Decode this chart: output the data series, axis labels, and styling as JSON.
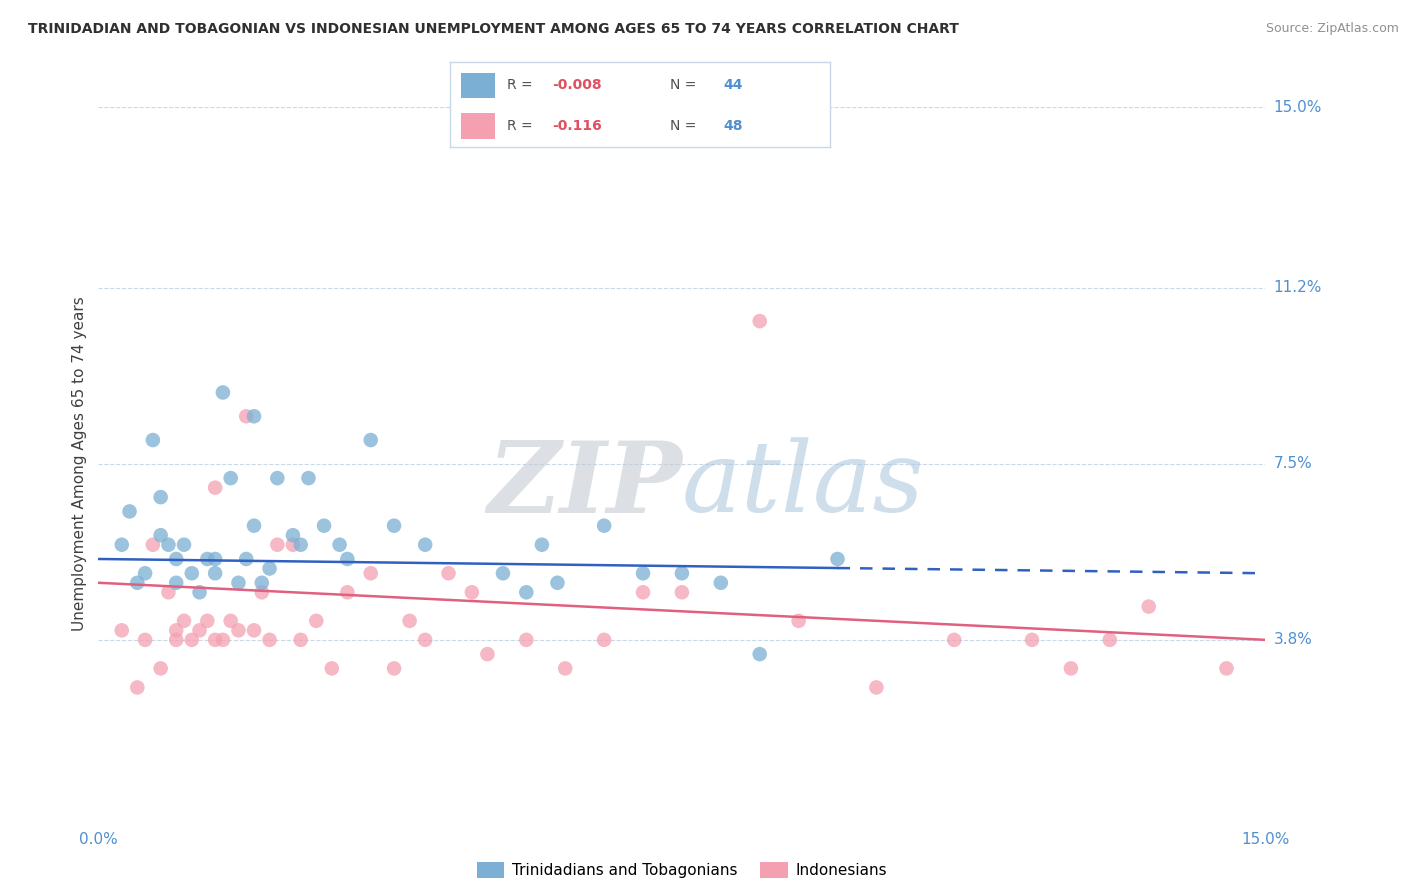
{
  "title": "TRINIDADIAN AND TOBAGONIAN VS INDONESIAN UNEMPLOYMENT AMONG AGES 65 TO 74 YEARS CORRELATION CHART",
  "source": "Source: ZipAtlas.com",
  "ylabel": "Unemployment Among Ages 65 to 74 years",
  "ylabel_ticks_values": [
    0.0,
    3.8,
    7.5,
    11.2,
    15.0
  ],
  "ylabel_ticks_labels": [
    "",
    "3.8%",
    "7.5%",
    "11.2%",
    "15.0%"
  ],
  "xmin": 0.0,
  "xmax": 15.0,
  "ymin": 0.0,
  "ymax": 15.0,
  "grid_color": "#c8d8e8",
  "bg_color": "#ffffff",
  "blue_color": "#7bafd4",
  "pink_color": "#f4a0b0",
  "blue_line_color": "#3060c0",
  "pink_line_color": "#e06080",
  "title_color": "#303030",
  "source_color": "#909090",
  "tick_label_color": "#5090d0",
  "legend_R_color": "#e05060",
  "legend_N_color": "#5090d0",
  "R_blue": -0.008,
  "N_blue": 44,
  "R_pink": -0.116,
  "N_pink": 48,
  "legend_label_blue": "Trinidadians and Tobagonians",
  "legend_label_pink": "Indonesians",
  "watermark_zip": "ZIP",
  "watermark_atlas": "atlas",
  "blue_scatter_x": [
    0.3,
    0.4,
    0.5,
    0.6,
    0.7,
    0.8,
    0.8,
    0.9,
    1.0,
    1.0,
    1.1,
    1.2,
    1.3,
    1.4,
    1.5,
    1.5,
    1.6,
    1.7,
    1.8,
    1.9,
    2.0,
    2.0,
    2.1,
    2.2,
    2.3,
    2.5,
    2.6,
    2.7,
    2.9,
    3.1,
    3.2,
    3.5,
    3.8,
    4.2,
    5.2,
    5.5,
    5.7,
    5.9,
    6.5,
    7.0,
    7.5,
    8.0,
    8.5,
    9.5
  ],
  "blue_scatter_y": [
    5.8,
    6.5,
    5.0,
    5.2,
    8.0,
    6.8,
    6.0,
    5.8,
    5.5,
    5.0,
    5.8,
    5.2,
    4.8,
    5.5,
    5.2,
    5.5,
    9.0,
    7.2,
    5.0,
    5.5,
    8.5,
    6.2,
    5.0,
    5.3,
    7.2,
    6.0,
    5.8,
    7.2,
    6.2,
    5.8,
    5.5,
    8.0,
    6.2,
    5.8,
    5.2,
    4.8,
    5.8,
    5.0,
    6.2,
    5.2,
    5.2,
    5.0,
    3.5,
    5.5
  ],
  "pink_scatter_x": [
    0.3,
    0.5,
    0.6,
    0.7,
    0.8,
    0.9,
    1.0,
    1.0,
    1.1,
    1.2,
    1.3,
    1.4,
    1.5,
    1.5,
    1.6,
    1.7,
    1.8,
    1.9,
    2.0,
    2.1,
    2.2,
    2.3,
    2.5,
    2.6,
    2.8,
    3.0,
    3.2,
    3.5,
    3.8,
    4.0,
    4.2,
    4.5,
    4.8,
    5.0,
    5.5,
    6.0,
    6.5,
    7.0,
    7.5,
    8.5,
    9.0,
    10.0,
    11.0,
    12.0,
    12.5,
    13.0,
    13.5,
    14.5
  ],
  "pink_scatter_y": [
    4.0,
    2.8,
    3.8,
    5.8,
    3.2,
    4.8,
    3.8,
    4.0,
    4.2,
    3.8,
    4.0,
    4.2,
    3.8,
    7.0,
    3.8,
    4.2,
    4.0,
    8.5,
    4.0,
    4.8,
    3.8,
    5.8,
    5.8,
    3.8,
    4.2,
    3.2,
    4.8,
    5.2,
    3.2,
    4.2,
    3.8,
    5.2,
    4.8,
    3.5,
    3.8,
    3.2,
    3.8,
    4.8,
    4.8,
    10.5,
    4.2,
    2.8,
    3.8,
    3.8,
    3.2,
    3.8,
    4.5,
    3.2
  ],
  "blue_line_x_solid_start": 0.0,
  "blue_line_x_solid_end": 9.5,
  "blue_line_x_dash_end": 15.0,
  "blue_line_y_at_0": 5.5,
  "blue_line_y_at_15": 5.2,
  "pink_line_y_at_0": 5.0,
  "pink_line_y_at_15": 3.8
}
